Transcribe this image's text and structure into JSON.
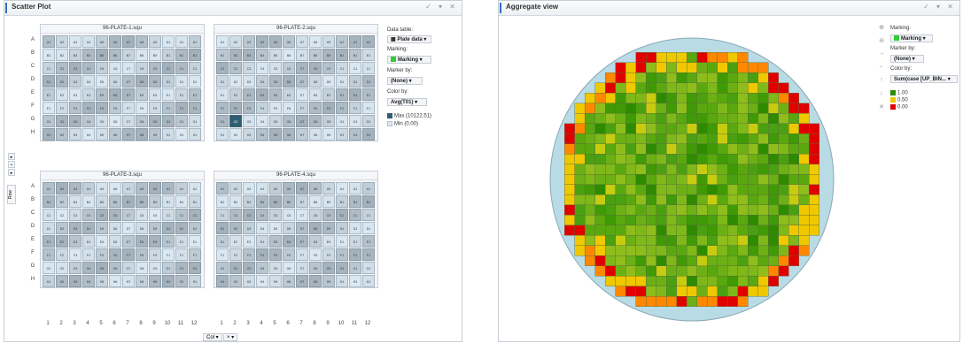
{
  "left": {
    "title": "Scatter Plot",
    "plates": [
      {
        "name": "96-PLATE-1.squ"
      },
      {
        "name": "96-PLATE-2.squ"
      },
      {
        "name": "96-PLATE-3.squ"
      },
      {
        "name": "96-PLATE-4.squ"
      }
    ],
    "rows": [
      "A",
      "B",
      "C",
      "D",
      "E",
      "F",
      "G",
      "H"
    ],
    "cols": [
      "1",
      "2",
      "3",
      "4",
      "5",
      "6",
      "7",
      "8",
      "9",
      "10",
      "11",
      "12"
    ],
    "data_table_label": "Data table:",
    "data_table_value": "Plate data",
    "marking_label": "Marking:",
    "marking_value": "Marking",
    "marker_by_label": "Marker by:",
    "marker_by_value": "(None)",
    "color_by_label": "Color by:",
    "color_by_value": "Avg(T01)",
    "legend_max": "Max (10122.51)",
    "legend_min": "Min (0.00)",
    "row_axis_label": "Row",
    "col_axis_label": "Col",
    "colors": {
      "max": "#2f5f73",
      "min": "#dfe8ef"
    }
  },
  "right": {
    "title": "Aggregate view",
    "marking_label": "Marking:",
    "marking_value": "Marking",
    "marker_by_label": "Marker by:",
    "marker_by_value": "(None)",
    "color_by_label": "Color by:",
    "color_by_value": "Sum(case [UP_BIN...",
    "legend": [
      {
        "label": "1.00",
        "color": "#2e8b00"
      },
      {
        "label": "0.50",
        "color": "#f0c800"
      },
      {
        "label": "0.00",
        "color": "#e00000"
      }
    ],
    "wafer_bg": "#b8dbe6"
  },
  "icons": {
    "window_controls": "check-minimize-close-icons",
    "tools": [
      "zoom-in-icon",
      "zoom-out-icon",
      "arrow-right-icon",
      "arrow-left-icon",
      "arrow-up-icon",
      "arrow-down-icon",
      "tools-icon"
    ]
  }
}
